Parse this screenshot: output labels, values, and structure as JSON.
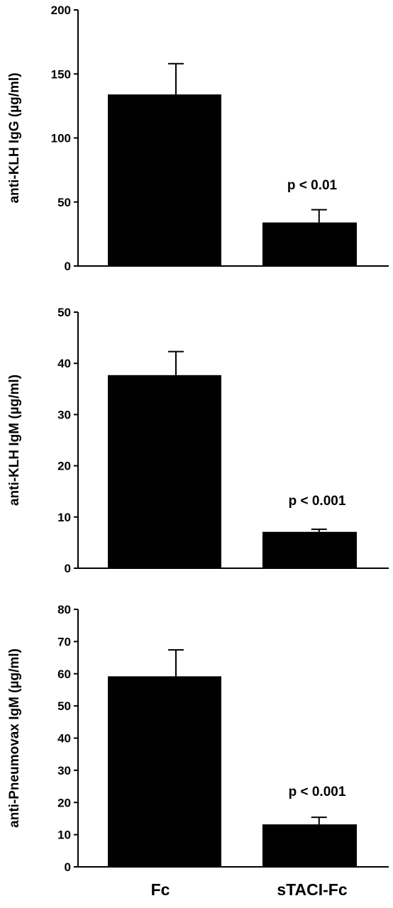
{
  "chart_data": [
    {
      "type": "bar",
      "categories": [
        "Fc",
        "sTACI-Fc"
      ],
      "values": [
        134,
        34
      ],
      "errors": [
        24,
        10
      ],
      "ylabel": "anti-KLH IgG (µg/ml)",
      "ylim": [
        0,
        200
      ],
      "yticks": [
        0,
        50,
        100,
        150,
        200
      ],
      "annotation": "p < 0.01",
      "bar_color": "#000000",
      "grid": false
    },
    {
      "type": "bar",
      "categories": [
        "Fc",
        "sTACI-Fc"
      ],
      "values": [
        37.7,
        7.1
      ],
      "errors": [
        4.6,
        0.5
      ],
      "ylabel": "anti-KLH IgM (µg/ml)",
      "ylim": [
        0,
        50
      ],
      "yticks": [
        0,
        10,
        20,
        30,
        40,
        50
      ],
      "annotation": "p < 0.001",
      "bar_color": "#000000",
      "grid": false
    },
    {
      "type": "bar",
      "categories": [
        "Fc",
        "sTACI-Fc"
      ],
      "values": [
        59.2,
        13.2
      ],
      "errors": [
        8.2,
        2.2
      ],
      "ylabel": "anti-Pneumovax IgM (µg/ml)",
      "ylim": [
        0,
        80
      ],
      "yticks": [
        0,
        10,
        20,
        30,
        40,
        50,
        60,
        70,
        80
      ],
      "annotation": "p < 0.001",
      "bar_color": "#000000",
      "grid": false
    }
  ],
  "x_categories": [
    "Fc",
    "sTACI-Fc"
  ]
}
